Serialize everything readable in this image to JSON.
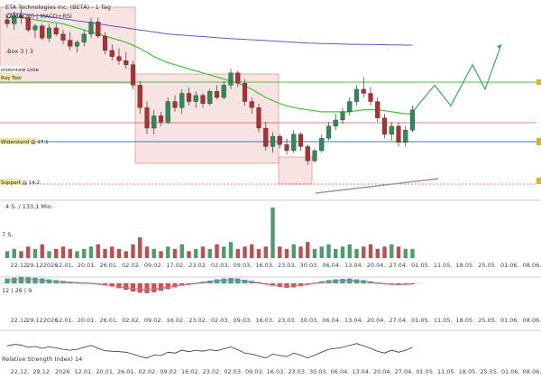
{
  "window": {
    "title": "ETA Technologies Inc. (BETA) - 1 Tag",
    "indicator_line": "KAMA(20) | MACD+RSI",
    "box_label": "-Box 3 | 3"
  },
  "overlay_labels": {
    "horizontal_line": "orizontale Linie",
    "tool_tag": "Ray Tool",
    "level_17": "Widerstand @ 17.1",
    "level_14": "Support @ 14.2"
  },
  "volume_label": "4 S. / 133,1 Mio.",
  "volume_axis_tick": "7 S.",
  "macd_label": "12 | 26 | 9",
  "rsi_label": "Relative Strength Index) 14",
  "x_ticks_main": [
    "22.12.",
    "29.122026",
    "12.01.",
    "20.01.",
    "26.01.",
    "02.02.",
    "09.02.",
    "17.02.",
    "23.02.",
    "02.03.",
    "09.03.",
    "16.03.",
    "23.03.",
    "30.03.",
    "06.04.",
    "13.04.",
    "20.04.",
    "27.04.",
    "01.05.",
    "11.05.",
    "18.05.",
    "25.05.",
    "01.06.",
    "08.06."
  ],
  "x_ticks_macd": [
    "22.12.",
    "29.122026",
    "12.01.",
    "20.01.",
    "26.01.",
    "02.02.",
    "09.02.",
    "16.02.",
    "23.02.",
    "02.03.",
    "09.03.",
    "16.03.",
    "23.03.",
    "30.03.",
    "06.04.",
    "13.04.",
    "20.04.",
    "27.04.",
    "01.05.",
    "11.05.",
    "18.05.",
    "25.05.",
    "01.06.",
    "08.06."
  ],
  "x_ticks_rsi": [
    "22.12.",
    "29.12",
    "2026",
    "12.01.",
    "20.01.",
    "26.01.",
    "02.02.",
    "09.02.",
    "16.02.",
    "23.02.",
    "02.03.",
    "09.03.",
    "16.03.",
    "23.03.",
    "30.03.",
    "06.04.",
    "13.04.",
    "20.04.",
    "27.04.",
    "01.05.",
    "11.05.",
    "18.05.",
    "25.05.",
    "01.06.",
    "08.06."
  ],
  "colors": {
    "up": "#2e8b57",
    "down": "#b03030",
    "sma_green": "#3cc83c",
    "sma_blue": "#5a5ad0",
    "resistance_red": "#e05050",
    "level_blue": "#3a7ac0",
    "box_fill": "#f4d0d0",
    "projection": "#2ea87a"
  },
  "chart_data": {
    "type": "candlestick",
    "title": "ETA Technologies Inc. (BETA) - 1 Tag",
    "ylim": [
      12.5,
      21.5
    ],
    "levels": [
      17.1,
      14.2,
      18.0,
      19.8
    ],
    "candles": [
      {
        "o": 20.8,
        "h": 21.0,
        "l": 20.4,
        "c": 20.6
      },
      {
        "o": 20.6,
        "h": 21.2,
        "l": 20.3,
        "c": 21.0
      },
      {
        "o": 21.0,
        "h": 21.3,
        "l": 20.6,
        "c": 20.9
      },
      {
        "o": 20.9,
        "h": 21.0,
        "l": 20.2,
        "c": 20.3
      },
      {
        "o": 20.3,
        "h": 20.6,
        "l": 19.9,
        "c": 20.5
      },
      {
        "o": 20.5,
        "h": 20.6,
        "l": 19.8,
        "c": 19.9
      },
      {
        "o": 19.9,
        "h": 20.6,
        "l": 19.7,
        "c": 20.4
      },
      {
        "o": 20.4,
        "h": 20.6,
        "l": 20.0,
        "c": 20.1
      },
      {
        "o": 20.1,
        "h": 20.3,
        "l": 19.6,
        "c": 19.8
      },
      {
        "o": 19.8,
        "h": 20.2,
        "l": 19.3,
        "c": 19.5
      },
      {
        "o": 19.5,
        "h": 19.8,
        "l": 19.2,
        "c": 19.7
      },
      {
        "o": 19.7,
        "h": 20.3,
        "l": 19.5,
        "c": 20.1
      },
      {
        "o": 20.1,
        "h": 20.9,
        "l": 19.9,
        "c": 20.7
      },
      {
        "o": 20.7,
        "h": 20.9,
        "l": 19.9,
        "c": 20.0
      },
      {
        "o": 20.0,
        "h": 20.2,
        "l": 19.1,
        "c": 19.3
      },
      {
        "o": 19.3,
        "h": 19.6,
        "l": 18.8,
        "c": 19.0
      },
      {
        "o": 19.0,
        "h": 19.4,
        "l": 18.6,
        "c": 18.8
      },
      {
        "o": 18.8,
        "h": 19.2,
        "l": 18.4,
        "c": 18.6
      },
      {
        "o": 18.6,
        "h": 18.8,
        "l": 17.4,
        "c": 17.6
      },
      {
        "o": 17.6,
        "h": 17.8,
        "l": 16.2,
        "c": 16.5
      },
      {
        "o": 16.5,
        "h": 16.8,
        "l": 15.2,
        "c": 15.5
      },
      {
        "o": 15.5,
        "h": 16.4,
        "l": 15.2,
        "c": 16.1
      },
      {
        "o": 16.1,
        "h": 16.3,
        "l": 15.6,
        "c": 15.8
      },
      {
        "o": 15.8,
        "h": 17.0,
        "l": 15.7,
        "c": 16.8
      },
      {
        "o": 16.8,
        "h": 17.1,
        "l": 16.3,
        "c": 16.5
      },
      {
        "o": 16.5,
        "h": 17.4,
        "l": 16.2,
        "c": 17.2
      },
      {
        "o": 17.2,
        "h": 17.5,
        "l": 16.6,
        "c": 16.8
      },
      {
        "o": 16.8,
        "h": 17.3,
        "l": 16.5,
        "c": 17.1
      },
      {
        "o": 17.1,
        "h": 17.2,
        "l": 16.5,
        "c": 16.7
      },
      {
        "o": 16.7,
        "h": 17.4,
        "l": 16.6,
        "c": 17.3
      },
      {
        "o": 17.3,
        "h": 17.6,
        "l": 16.9,
        "c": 17.0
      },
      {
        "o": 17.0,
        "h": 17.8,
        "l": 16.9,
        "c": 17.6
      },
      {
        "o": 17.6,
        "h": 18.4,
        "l": 17.4,
        "c": 18.2
      },
      {
        "o": 18.2,
        "h": 18.3,
        "l": 17.5,
        "c": 17.7
      },
      {
        "o": 17.7,
        "h": 17.9,
        "l": 16.6,
        "c": 16.8
      },
      {
        "o": 16.8,
        "h": 17.0,
        "l": 16.2,
        "c": 16.5
      },
      {
        "o": 16.5,
        "h": 16.7,
        "l": 15.3,
        "c": 15.5
      },
      {
        "o": 15.5,
        "h": 15.8,
        "l": 14.4,
        "c": 14.6
      },
      {
        "o": 14.6,
        "h": 15.3,
        "l": 14.3,
        "c": 15.1
      },
      {
        "o": 15.1,
        "h": 15.2,
        "l": 14.5,
        "c": 14.7
      },
      {
        "o": 14.7,
        "h": 15.0,
        "l": 14.2,
        "c": 14.4
      },
      {
        "o": 14.4,
        "h": 15.4,
        "l": 14.3,
        "c": 15.2
      },
      {
        "o": 15.2,
        "h": 15.3,
        "l": 14.4,
        "c": 14.6
      },
      {
        "o": 14.6,
        "h": 14.7,
        "l": 13.7,
        "c": 13.9
      },
      {
        "o": 13.9,
        "h": 14.5,
        "l": 13.8,
        "c": 14.4
      },
      {
        "o": 14.4,
        "h": 15.2,
        "l": 14.3,
        "c": 15.0
      },
      {
        "o": 15.0,
        "h": 15.8,
        "l": 14.9,
        "c": 15.6
      },
      {
        "o": 15.6,
        "h": 16.2,
        "l": 15.4,
        "c": 15.9
      },
      {
        "o": 15.9,
        "h": 16.5,
        "l": 15.7,
        "c": 16.3
      },
      {
        "o": 16.3,
        "h": 17.0,
        "l": 16.1,
        "c": 16.8
      },
      {
        "o": 16.8,
        "h": 17.6,
        "l": 16.6,
        "c": 17.4
      },
      {
        "o": 17.4,
        "h": 18.0,
        "l": 17.0,
        "c": 17.2
      },
      {
        "o": 17.2,
        "h": 17.5,
        "l": 16.6,
        "c": 16.8
      },
      {
        "o": 16.8,
        "h": 17.0,
        "l": 15.8,
        "c": 16.0
      },
      {
        "o": 16.0,
        "h": 16.2,
        "l": 15.0,
        "c": 15.2
      },
      {
        "o": 15.2,
        "h": 15.8,
        "l": 14.9,
        "c": 15.6
      },
      {
        "o": 15.6,
        "h": 15.8,
        "l": 14.6,
        "c": 14.8
      },
      {
        "o": 14.8,
        "h": 15.6,
        "l": 14.6,
        "c": 15.4
      },
      {
        "o": 15.4,
        "h": 16.6,
        "l": 15.3,
        "c": 16.4
      }
    ],
    "sma_green": [
      20.9,
      20.9,
      20.9,
      20.85,
      20.8,
      20.75,
      20.7,
      20.65,
      20.6,
      20.5,
      20.4,
      20.3,
      20.2,
      20.1,
      20.0,
      19.9,
      19.8,
      19.7,
      19.55,
      19.4,
      19.2,
      19.0,
      18.85,
      18.7,
      18.6,
      18.5,
      18.4,
      18.3,
      18.2,
      18.1,
      18.0,
      17.9,
      17.8,
      17.7,
      17.55,
      17.4,
      17.2,
      17.0,
      16.85,
      16.7,
      16.6,
      16.5,
      16.45,
      16.4,
      16.35,
      16.3,
      16.3,
      16.3,
      16.3,
      16.3,
      16.35,
      16.4,
      16.4,
      16.4,
      16.35,
      16.3,
      16.25,
      16.2,
      16.2
    ],
    "sma_blue": [
      21.1,
      21.1,
      21.1,
      21.05,
      21.0,
      21.0,
      20.95,
      20.9,
      20.85,
      20.8,
      20.75,
      20.7,
      20.65,
      20.6,
      20.55,
      20.5,
      20.45,
      20.4,
      20.35,
      20.3,
      20.25,
      20.2,
      20.15,
      20.1,
      20.08,
      20.05,
      20.02,
      20.0,
      19.98,
      19.95,
      19.92,
      19.9,
      19.88,
      19.86,
      19.84,
      19.82,
      19.8,
      19.78,
      19.76,
      19.74,
      19.72,
      19.7,
      19.68,
      19.66,
      19.65,
      19.64,
      19.63,
      19.62,
      19.61,
      19.6,
      19.6,
      19.59,
      19.59,
      19.58,
      19.58,
      19.57,
      19.57,
      19.56,
      19.56
    ],
    "projection": [
      16.4,
      17.6,
      16.6,
      18.6,
      17.4,
      19.6
    ],
    "volume": [
      3,
      4,
      3,
      5,
      4,
      6,
      3,
      4,
      5,
      4,
      3,
      4,
      5,
      6,
      4,
      5,
      4,
      3,
      6,
      9,
      5,
      4,
      3,
      5,
      4,
      6,
      3,
      4,
      5,
      4,
      6,
      5,
      7,
      4,
      5,
      6,
      4,
      5,
      22,
      5,
      4,
      6,
      5,
      7,
      4,
      5,
      6,
      4,
      5,
      6,
      4,
      5,
      6,
      4,
      5,
      6,
      5,
      4,
      4
    ],
    "volume_up": [
      1,
      1,
      0,
      0,
      1,
      0,
      1,
      0,
      0,
      0,
      1,
      1,
      1,
      0,
      0,
      0,
      0,
      0,
      0,
      0,
      0,
      1,
      0,
      1,
      0,
      1,
      0,
      1,
      0,
      1,
      0,
      1,
      1,
      0,
      0,
      0,
      0,
      0,
      1,
      0,
      0,
      1,
      0,
      0,
      1,
      1,
      1,
      1,
      1,
      1,
      1,
      0,
      0,
      0,
      0,
      1,
      0,
      1,
      1
    ],
    "macd_hist": [
      1.2,
      1.4,
      1.6,
      1.5,
      1.4,
      1.2,
      1.0,
      0.8,
      0.6,
      0.4,
      0.3,
      0.2,
      0.1,
      -0.2,
      -0.5,
      -0.8,
      -1.2,
      -1.6,
      -2.0,
      -2.3,
      -2.4,
      -2.2,
      -1.8,
      -1.4,
      -1.0,
      -0.6,
      -0.3,
      0.1,
      0.4,
      0.7,
      1.0,
      1.2,
      1.3,
      1.2,
      0.9,
      0.6,
      0.3,
      -0.2,
      -0.6,
      -0.9,
      -1.1,
      -1.0,
      -0.7,
      -0.3,
      0.1,
      0.5,
      0.8,
      1.0,
      1.1,
      1.2,
      1.0,
      0.8,
      0.5,
      0.2,
      -0.1,
      -0.3,
      -0.4,
      -0.3,
      -0.2
    ],
    "rsi": [
      55,
      58,
      57,
      52,
      54,
      50,
      53,
      51,
      48,
      46,
      48,
      52,
      56,
      50,
      45,
      44,
      43,
      42,
      38,
      33,
      30,
      36,
      35,
      42,
      40,
      46,
      43,
      46,
      44,
      47,
      45,
      49,
      53,
      47,
      40,
      38,
      34,
      30,
      38,
      35,
      33,
      40,
      36,
      30,
      36,
      42,
      48,
      50,
      52,
      56,
      60,
      55,
      50,
      44,
      40,
      46,
      42,
      46,
      52
    ]
  }
}
